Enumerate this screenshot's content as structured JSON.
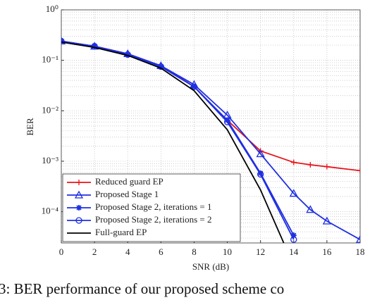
{
  "chart_data": {
    "type": "line",
    "xlabel": "SNR (dB)",
    "ylabel": "BER",
    "caption": "3: BER performance of our proposed scheme co",
    "xlim": [
      0,
      18
    ],
    "xticks": [
      0,
      2,
      4,
      6,
      8,
      10,
      12,
      14,
      16,
      18
    ],
    "ylim": [
      2.4e-05,
      1
    ],
    "log_y": true,
    "grid": true,
    "legend": "lower left",
    "yticks": [
      {
        "value": 0.0001,
        "label": "10⁻⁴"
      },
      {
        "value": 0.001,
        "label": "10⁻³"
      },
      {
        "value": 0.01,
        "label": "10⁻²"
      },
      {
        "value": 0.1,
        "label": "10⁻¹"
      },
      {
        "value": 1,
        "label": "10⁰"
      }
    ],
    "series": [
      {
        "name": "Reduced guard EP",
        "color": "#e8141a",
        "marker": "plus",
        "x": [
          0,
          2,
          4,
          6,
          8,
          10,
          12,
          14,
          15,
          16,
          18
        ],
        "values": [
          0.24,
          0.19,
          0.135,
          0.078,
          0.03,
          0.0065,
          0.0016,
          0.00095,
          0.00085,
          0.00078,
          0.00065
        ]
      },
      {
        "name": "Proposed Stage 1",
        "color": "#1f2fe0",
        "marker": "triangle",
        "x": [
          0,
          2,
          4,
          6,
          8,
          10,
          12,
          14,
          15,
          16,
          18
        ],
        "values": [
          0.24,
          0.19,
          0.135,
          0.078,
          0.033,
          0.0082,
          0.0014,
          0.00023,
          0.00011,
          6.5e-05,
          2.8e-05
        ]
      },
      {
        "name": "Proposed Stage 2, iterations = 1",
        "color": "#1f2fe0",
        "marker": "star",
        "x": [
          0,
          2,
          4,
          6,
          8,
          10,
          12,
          14
        ],
        "values": [
          0.24,
          0.19,
          0.13,
          0.075,
          0.03,
          0.0065,
          0.00058,
          3.4e-05
        ]
      },
      {
        "name": "Proposed Stage 2, iterations = 2",
        "color": "#1f2fe0",
        "marker": "circle",
        "x": [
          0,
          2,
          4,
          6,
          8,
          10,
          12,
          14
        ],
        "values": [
          0.24,
          0.19,
          0.13,
          0.075,
          0.03,
          0.006,
          0.00055,
          2.8e-05
        ]
      },
      {
        "name": "Full-guard EP",
        "color": "#000000",
        "marker": "none",
        "x": [
          0,
          2,
          4,
          6,
          8,
          10,
          12,
          13.4
        ],
        "values": [
          0.23,
          0.18,
          0.125,
          0.07,
          0.025,
          0.0042,
          0.00027,
          2.4e-05
        ]
      }
    ]
  }
}
